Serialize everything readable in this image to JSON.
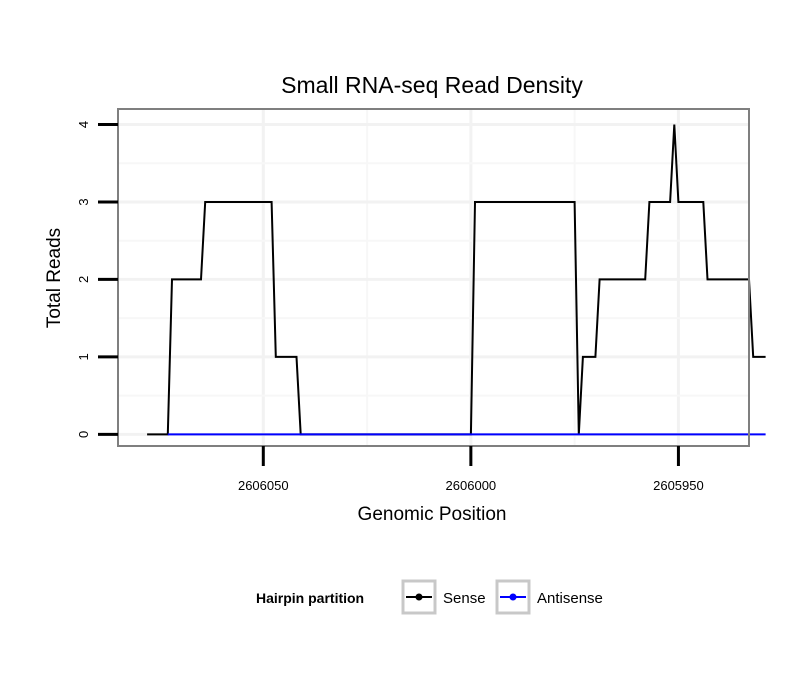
{
  "chart_data": {
    "type": "line",
    "title": "Small RNA-seq Read Density",
    "xlabel": "Genomic Position",
    "ylabel": "Total Reads",
    "x_reversed": true,
    "xlim": [
      2606085,
      2605933
    ],
    "ylim": [
      -0.15,
      4.2
    ],
    "x_ticks": [
      2606050,
      2606000,
      2605950
    ],
    "x_tick_labels": [
      "2606050",
      "2606000",
      "2605950"
    ],
    "y_ticks": [
      0,
      1,
      2,
      3,
      4
    ],
    "y_tick_labels": [
      "0",
      "1",
      "2",
      "3",
      "4"
    ],
    "grid": true,
    "legend": {
      "title": "Hairpin partition",
      "position": "bottom",
      "entries": [
        {
          "name": "Sense",
          "color": "#000000"
        },
        {
          "name": "Antisense",
          "color": "#0000ff"
        }
      ]
    },
    "series": [
      {
        "name": "Sense",
        "color": "#000000",
        "points": [
          [
            2606078,
            0
          ],
          [
            2606073,
            0
          ],
          [
            2606072,
            2
          ],
          [
            2606065,
            2
          ],
          [
            2606064,
            3
          ],
          [
            2606048,
            3
          ],
          [
            2606047,
            1
          ],
          [
            2606042,
            1
          ],
          [
            2606041,
            0
          ],
          [
            2606000,
            0
          ],
          [
            2605999,
            3
          ],
          [
            2605975,
            3
          ],
          [
            2605974,
            0
          ],
          [
            2605973,
            1
          ],
          [
            2605970,
            1
          ],
          [
            2605969,
            2
          ],
          [
            2605958,
            2
          ],
          [
            2605957,
            3
          ],
          [
            2605952,
            3
          ],
          [
            2605951,
            4
          ],
          [
            2605950,
            3
          ],
          [
            2605944,
            3
          ],
          [
            2605943,
            2
          ],
          [
            2605933,
            2
          ],
          [
            2605932,
            1
          ],
          [
            2605929,
            1
          ]
        ]
      },
      {
        "name": "Antisense",
        "color": "#0000ff",
        "points": [
          [
            2606073,
            0
          ],
          [
            2605929,
            0
          ]
        ]
      }
    ]
  }
}
